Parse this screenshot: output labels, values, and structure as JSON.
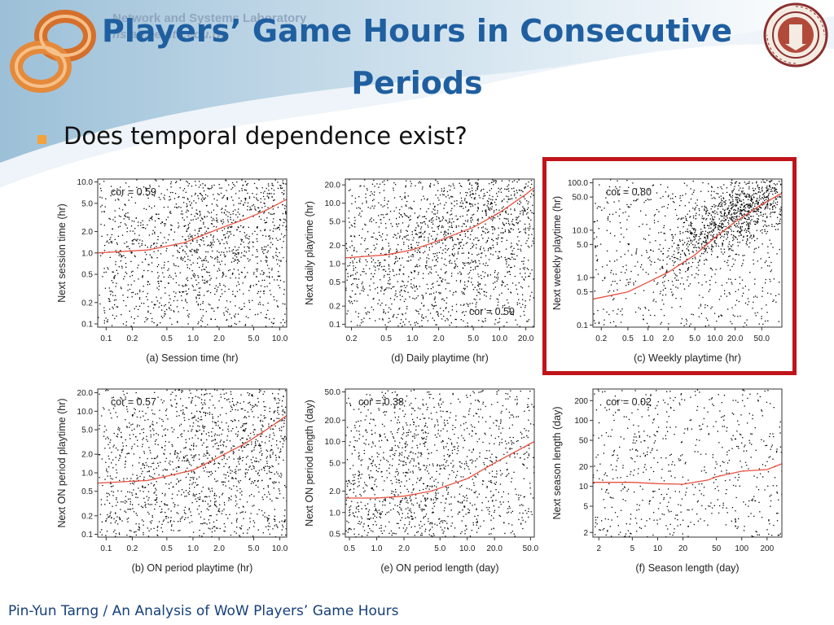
{
  "header": {
    "lab_name": "Network and Systems Laboratory",
    "lab_url": "nslab.ee.ntu.edu.tw",
    "title": "Players’ Game Hours in Consecutive Periods"
  },
  "bullet": {
    "text": "Does temporal dependence exist?"
  },
  "footer": {
    "text": "Pin-Yun Tarng / An Analysis of WoW Players’ Game Hours"
  },
  "colors": {
    "title": "#1f5fa0",
    "bullet": "#f5a23c",
    "highlight_border": "#c0141b",
    "fit_line": "#e8503f",
    "points": "#000000",
    "footer": "#16407a"
  },
  "icons": {
    "left_logo": "orange-infinity-logo-icon",
    "right_logo": "university-seal-icon"
  },
  "highlighted_panel": "c",
  "chart_data": [
    {
      "id": "a",
      "type": "scatter",
      "log_x": true,
      "log_y": true,
      "xlabel": "(a) Session time (hr)",
      "ylabel": "Next session time (hr)",
      "annotation": "cor = 0.59",
      "xlim": [
        0.08,
        12
      ],
      "ylim": [
        0.09,
        11
      ],
      "xticks": [
        0.1,
        0.2,
        0.5,
        1.0,
        2.0,
        5.0,
        10.0
      ],
      "xtick_labels": [
        "0.1",
        "0.2",
        "0.5",
        "1.0",
        "2.0",
        "5.0",
        "10.0"
      ],
      "yticks": [
        0.1,
        0.2,
        0.5,
        1.0,
        2.0,
        5.0,
        10.0
      ],
      "ytick_labels": [
        "0.1",
        "0.2",
        "0.5",
        "1.0",
        "2.0",
        "5.0",
        "10.0"
      ],
      "fit_line": {
        "x": [
          0.08,
          0.3,
          0.8,
          2.0,
          4.0,
          7.0,
          12.0
        ],
        "y": [
          1.0,
          1.1,
          1.4,
          2.2,
          3.0,
          4.0,
          5.7
        ]
      },
      "correlation": 0.59,
      "point_cloud": {
        "count": 2000,
        "center": [
          3.0,
          3.0
        ],
        "spread": [
          0.9,
          0.85
        ]
      }
    },
    {
      "id": "d",
      "type": "scatter",
      "log_x": true,
      "log_y": true,
      "xlabel": "(d) Daily playtime (hr)",
      "ylabel": "Next daily playtime (hr)",
      "annotation": "cor = 0.59",
      "xlim": [
        0.17,
        25
      ],
      "ylim": [
        0.09,
        25
      ],
      "xticks": [
        0.2,
        0.5,
        1.0,
        2.0,
        5.0,
        10.0,
        20.0
      ],
      "xtick_labels": [
        "0.2",
        "0.5",
        "1.0",
        "2.0",
        "5.0",
        "10.0",
        "20.0"
      ],
      "yticks": [
        0.1,
        0.2,
        0.5,
        1.0,
        2.0,
        5.0,
        10.0,
        20.0
      ],
      "ytick_labels": [
        "0.1",
        "0.2",
        "0.5",
        "1.0",
        "2.0",
        "5.0",
        "10.0",
        "20.0"
      ],
      "fit_line": {
        "x": [
          0.17,
          0.5,
          1.0,
          2.0,
          5.0,
          10.0,
          20.0,
          25.0
        ],
        "y": [
          1.25,
          1.4,
          1.7,
          2.4,
          4.0,
          7.0,
          14.0,
          18.0
        ]
      },
      "correlation": 0.59,
      "point_cloud": {
        "count": 2300,
        "center": [
          6.0,
          5.0
        ],
        "spread": [
          0.9,
          0.9
        ]
      }
    },
    {
      "id": "c",
      "type": "scatter",
      "log_x": true,
      "log_y": true,
      "xlabel": "(c) Weekly playtime (hr)",
      "ylabel": "Next weekly playtime (hr)",
      "annotation": "cor = 0.80",
      "xlim": [
        0.15,
        100
      ],
      "ylim": [
        0.09,
        120
      ],
      "xticks": [
        0.2,
        0.5,
        1.0,
        2.0,
        5.0,
        10.0,
        20.0,
        50.0
      ],
      "xtick_labels": [
        "0.2",
        "0.5",
        "1.0",
        "2.0",
        "5.0",
        "10.0",
        "20.0",
        "50.0"
      ],
      "yticks": [
        0.1,
        0.5,
        1.0,
        5.0,
        10.0,
        50.0,
        100.0
      ],
      "ytick_labels": [
        "0.1",
        "0.5",
        "1.0",
        "5.0",
        "10.0",
        "50.0",
        "100.0"
      ],
      "fit_line": {
        "x": [
          0.15,
          0.5,
          1.0,
          2.0,
          5.0,
          10.0,
          20.0,
          50.0,
          100.0
        ],
        "y": [
          0.35,
          0.5,
          0.8,
          1.3,
          3.0,
          7.0,
          15.0,
          35.0,
          60.0
        ]
      },
      "correlation": 0.8,
      "point_cloud": {
        "count": 1800,
        "center": [
          25.0,
          25.0
        ],
        "spread": [
          0.6,
          0.6
        ]
      }
    },
    {
      "id": "b",
      "type": "scatter",
      "log_x": true,
      "log_y": true,
      "xlabel": "(b) ON period playtime (hr)",
      "ylabel": "Next ON period playtime (hr)",
      "annotation": "cor = 0.57",
      "xlim": [
        0.08,
        12
      ],
      "ylim": [
        0.09,
        23
      ],
      "xticks": [
        0.1,
        0.2,
        0.5,
        1.0,
        2.0,
        5.0,
        10.0
      ],
      "xtick_labels": [
        "0.1",
        "0.2",
        "0.5",
        "1.0",
        "2.0",
        "5.0",
        "10.0"
      ],
      "yticks": [
        0.1,
        0.2,
        0.5,
        1.0,
        2.0,
        5.0,
        10.0,
        20.0
      ],
      "ytick_labels": [
        "0.1",
        "0.2",
        "0.5",
        "1.0",
        "2.0",
        "5.0",
        "10.0",
        "20.0"
      ],
      "fit_line": {
        "x": [
          0.08,
          0.3,
          1.0,
          2.0,
          4.0,
          7.0,
          12.0
        ],
        "y": [
          0.68,
          0.75,
          1.1,
          1.8,
          3.0,
          5.0,
          8.5
        ]
      },
      "correlation": 0.57,
      "point_cloud": {
        "count": 2000,
        "center": [
          2.5,
          2.5
        ],
        "spread": [
          0.95,
          0.95
        ]
      }
    },
    {
      "id": "e",
      "type": "scatter",
      "log_x": true,
      "log_y": true,
      "xlabel": "(e) ON period length (day)",
      "ylabel": "Next ON period length (day)",
      "annotation": "cor = 0.38",
      "xlim": [
        0.45,
        55
      ],
      "ylim": [
        0.45,
        55
      ],
      "xticks": [
        0.5,
        1.0,
        2.0,
        5.0,
        10.0,
        20.0,
        50.0
      ],
      "xtick_labels": [
        "0.5",
        "1.0",
        "2.0",
        "5.0",
        "10.0",
        "20.0",
        "50.0"
      ],
      "yticks": [
        0.5,
        1.0,
        2.0,
        5.0,
        10.0,
        20.0,
        50.0
      ],
      "ytick_labels": [
        "0.5",
        "1.0",
        "2.0",
        "5.0",
        "10.0",
        "20.0",
        "50.0"
      ],
      "fit_line": {
        "x": [
          0.45,
          1.0,
          2.0,
          4.0,
          10.0,
          20.0,
          55.0
        ],
        "y": [
          1.6,
          1.6,
          1.7,
          2.0,
          3.0,
          5.0,
          10.0
        ]
      },
      "correlation": 0.38,
      "point_cloud": {
        "count": 1800,
        "center": [
          1.8,
          1.7
        ],
        "spread": [
          0.75,
          0.85
        ]
      }
    },
    {
      "id": "f",
      "type": "scatter",
      "log_x": true,
      "log_y": true,
      "xlabel": "(f) Season length (day)",
      "ylabel": "Next season length (day)",
      "annotation": "cor = 0.02",
      "xlim": [
        1.7,
        300
      ],
      "ylim": [
        1.7,
        300
      ],
      "xticks": [
        2,
        5,
        10,
        20,
        50,
        100,
        200
      ],
      "xtick_labels": [
        "2",
        "5",
        "10",
        "20",
        "50",
        "100",
        "200"
      ],
      "yticks": [
        2,
        5,
        10,
        20,
        50,
        100,
        200
      ],
      "ytick_labels": [
        "2",
        "5",
        "10",
        "20",
        "50",
        "100",
        "200"
      ],
      "fit_line": {
        "x": [
          1.7,
          5.0,
          10.0,
          20.0,
          40.0,
          50.0,
          100.0,
          200.0,
          300.0
        ],
        "y": [
          11.5,
          11.5,
          11.0,
          10.8,
          12.5,
          14.0,
          17.0,
          18.0,
          22.0
        ]
      },
      "correlation": 0.02,
      "point_cloud": {
        "count": 1100,
        "center": [
          12.0,
          12.0
        ],
        "spread": [
          1.3,
          1.3
        ]
      }
    }
  ]
}
